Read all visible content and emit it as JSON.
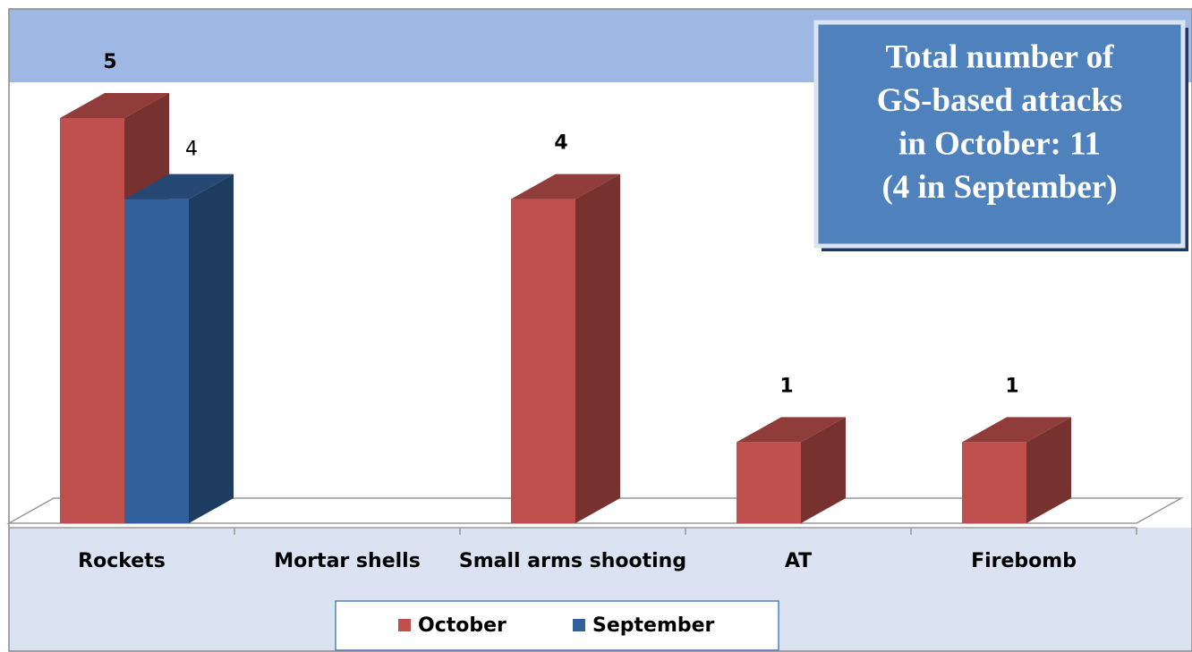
{
  "chart_data": {
    "type": "bar3d",
    "annotation": [
      "Total number of",
      "GS-based attacks",
      "in October: 11",
      "(4 in September)"
    ],
    "categories": [
      "Rockets",
      "Mortar shells",
      "Small arms shooting",
      "AT",
      "Firebomb"
    ],
    "series": [
      {
        "name": "October",
        "color": "#c0504d",
        "values": [
          5,
          null,
          4,
          1,
          1
        ]
      },
      {
        "name": "September",
        "color": "#31609a",
        "values": [
          4,
          null,
          null,
          null,
          null
        ]
      }
    ],
    "ylim": [
      0,
      5
    ]
  }
}
